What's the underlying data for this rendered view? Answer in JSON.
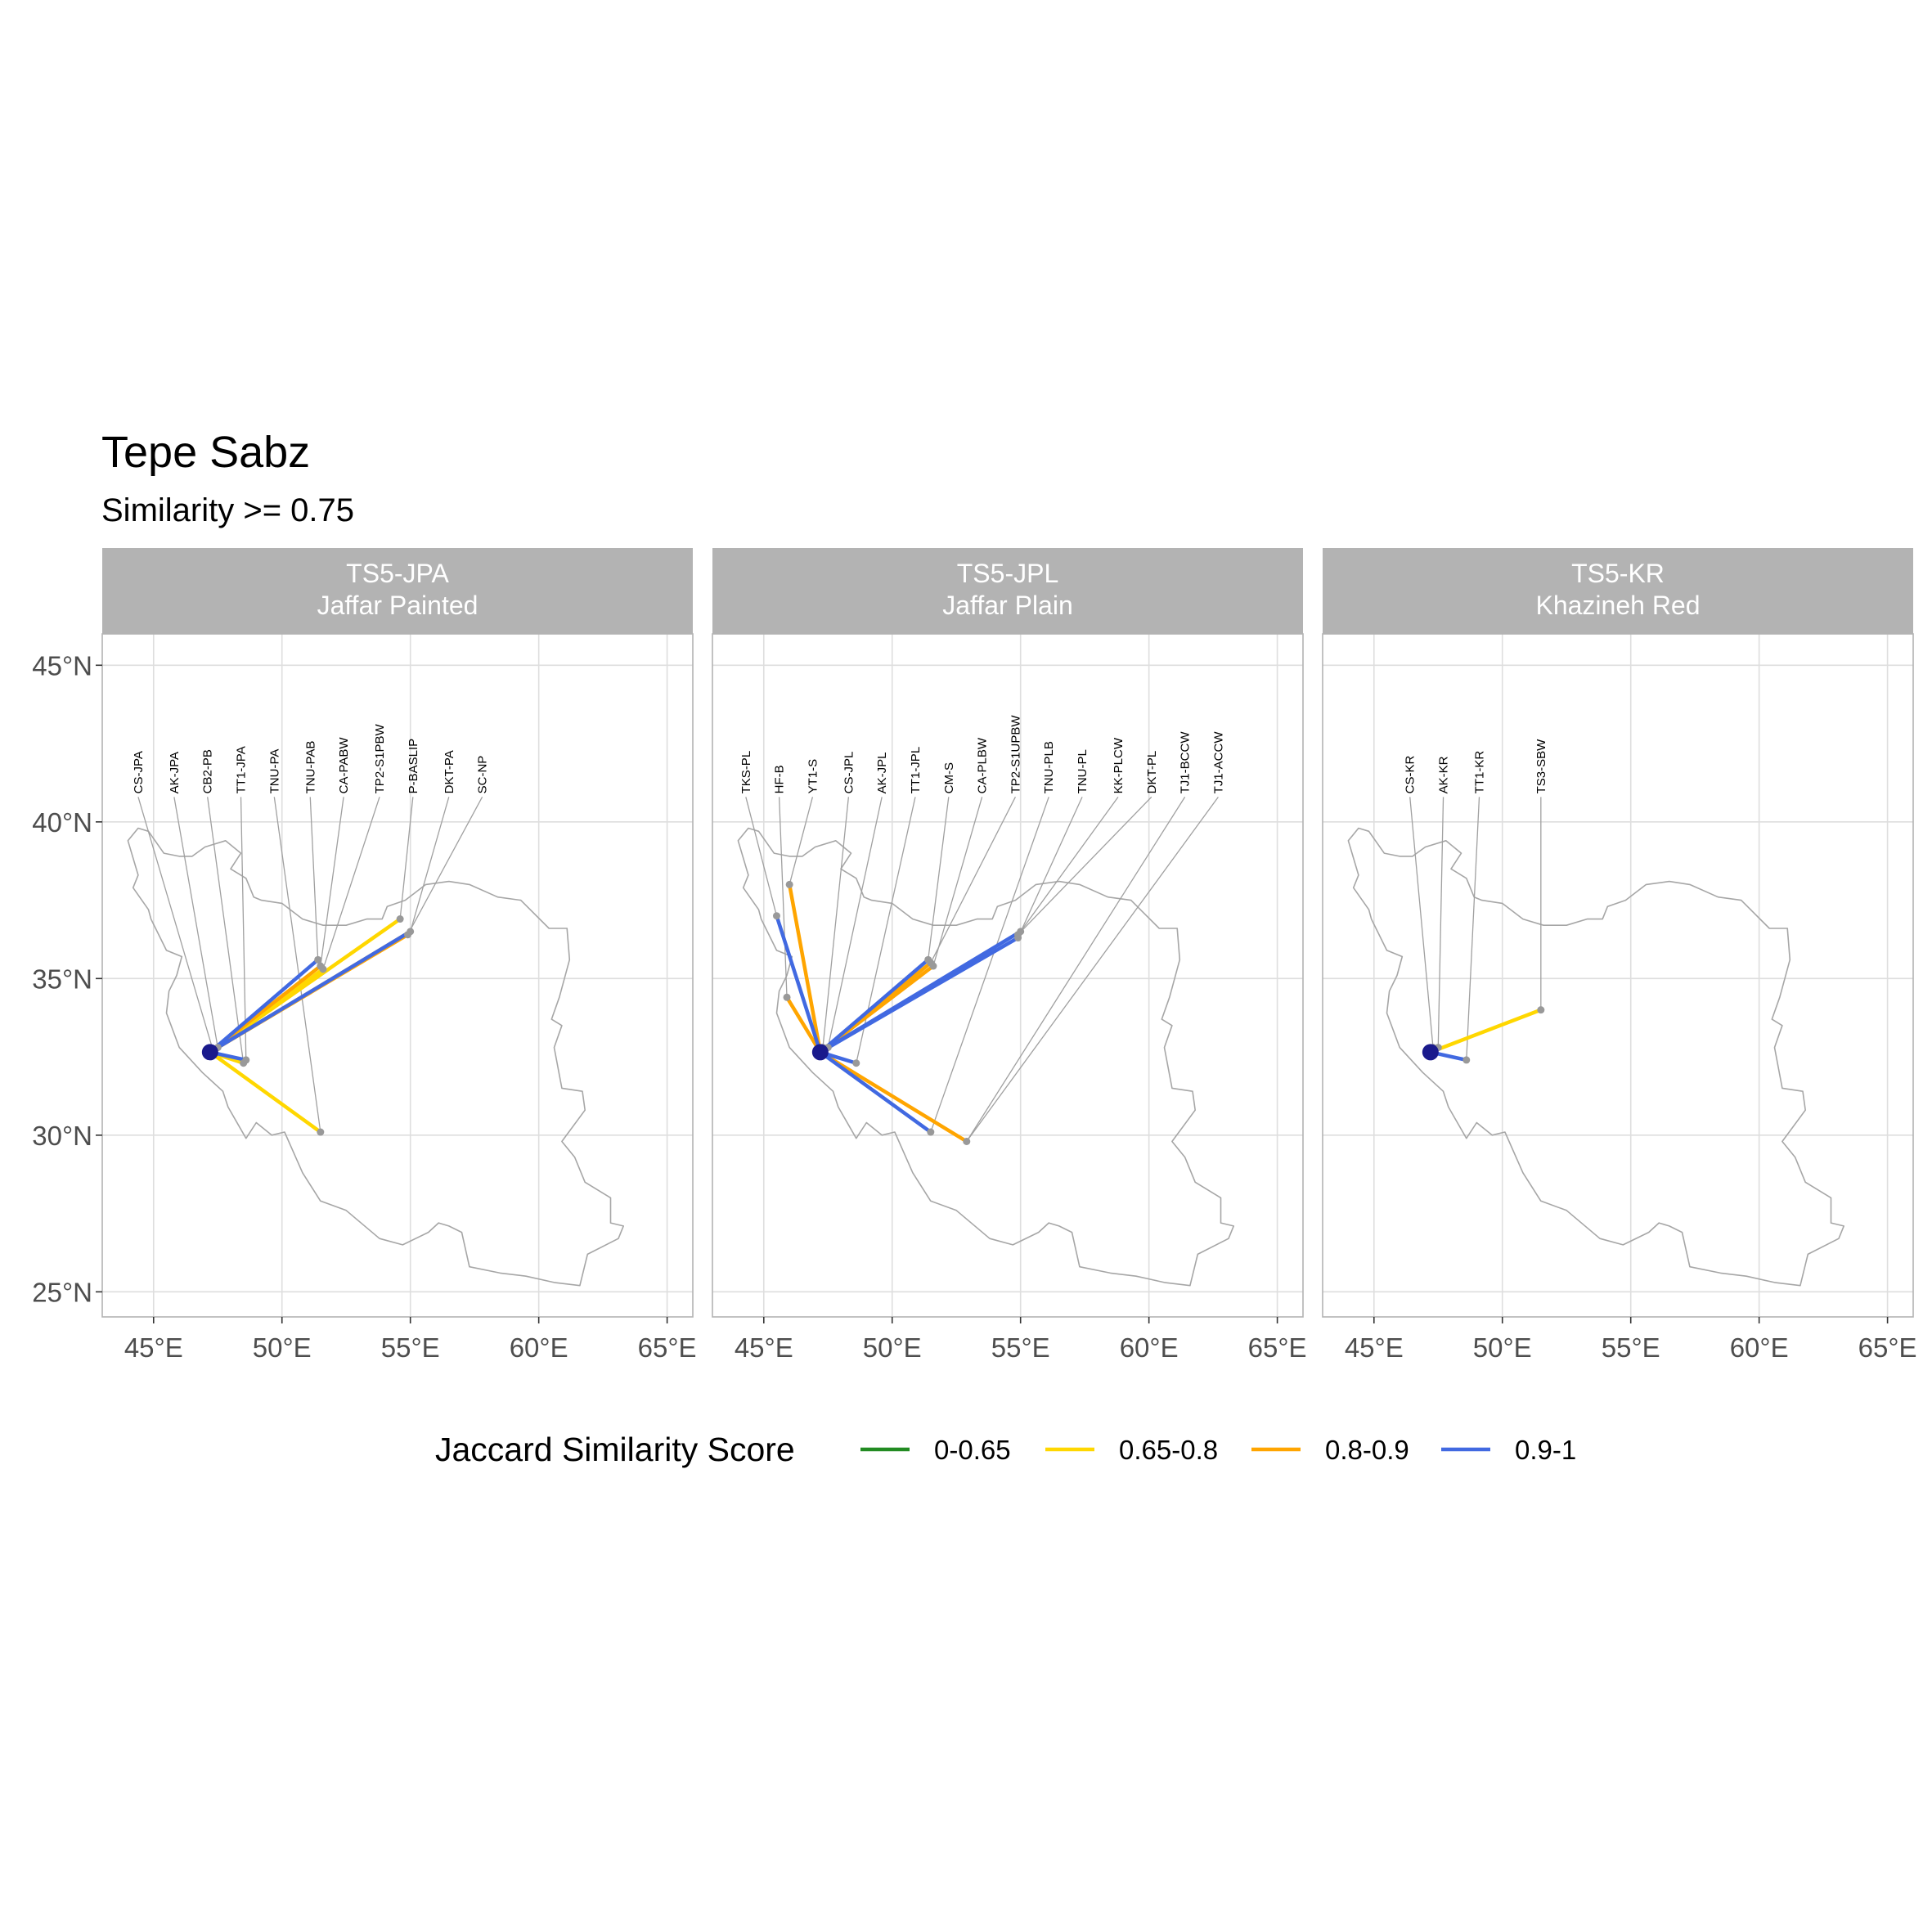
{
  "title": "Tepe Sabz",
  "subtitle": "Similarity >= 0.75",
  "colors": {
    "0-0.65": "#228b22",
    "0.65-0.8": "#ffd700",
    "0.8-0.9": "#ffa500",
    "0.9-1": "#4169e1",
    "origin_point": "#1a1a8c",
    "site_point": "#999999",
    "outline": "#a6a6a6",
    "strip": "#b3b3b3",
    "grid": "#dedede"
  },
  "axes": {
    "x_ticks": [
      45,
      50,
      55,
      60,
      65
    ],
    "x_tick_labels": [
      "45°E",
      "50°E",
      "55°E",
      "60°E",
      "65°E"
    ],
    "y_ticks": [
      25,
      30,
      35,
      40,
      45
    ],
    "y_tick_labels": [
      "25°N",
      "30°N",
      "35°N",
      "40°N",
      "45°N"
    ],
    "xlim": [
      43,
      66
    ],
    "ylim": [
      24.2,
      46
    ]
  },
  "legend": {
    "title": "Jaccard Similarity Score",
    "position": "bottom",
    "items": [
      {
        "label": "0-0.65",
        "color": "#228b22"
      },
      {
        "label": "0.65-0.8",
        "color": "#ffd700"
      },
      {
        "label": "0.8-0.9",
        "color": "#ffa500"
      },
      {
        "label": "0.9-1",
        "color": "#4169e1"
      }
    ]
  },
  "iran_outline": [
    [
      44.0,
      39.4
    ],
    [
      44.4,
      39.8
    ],
    [
      44.8,
      39.7
    ],
    [
      45.4,
      39.0
    ],
    [
      46.0,
      38.9
    ],
    [
      46.5,
      38.9
    ],
    [
      47.0,
      39.2
    ],
    [
      47.8,
      39.4
    ],
    [
      48.4,
      39.0
    ],
    [
      48.0,
      38.5
    ],
    [
      48.6,
      38.2
    ],
    [
      48.9,
      37.6
    ],
    [
      49.2,
      37.5
    ],
    [
      50.0,
      37.4
    ],
    [
      50.8,
      36.9
    ],
    [
      51.6,
      36.7
    ],
    [
      52.5,
      36.7
    ],
    [
      53.3,
      36.9
    ],
    [
      53.9,
      36.9
    ],
    [
      54.1,
      37.3
    ],
    [
      54.8,
      37.5
    ],
    [
      55.6,
      38.0
    ],
    [
      56.5,
      38.1
    ],
    [
      57.3,
      38.0
    ],
    [
      58.4,
      37.6
    ],
    [
      59.3,
      37.5
    ],
    [
      60.4,
      36.6
    ],
    [
      61.1,
      36.6
    ],
    [
      61.2,
      35.6
    ],
    [
      60.8,
      34.4
    ],
    [
      60.5,
      33.7
    ],
    [
      60.9,
      33.5
    ],
    [
      60.6,
      32.8
    ],
    [
      60.9,
      31.5
    ],
    [
      61.7,
      31.4
    ],
    [
      61.8,
      30.8
    ],
    [
      60.9,
      29.8
    ],
    [
      61.4,
      29.3
    ],
    [
      61.8,
      28.5
    ],
    [
      62.8,
      28.0
    ],
    [
      62.8,
      27.2
    ],
    [
      63.3,
      27.1
    ],
    [
      63.1,
      26.7
    ],
    [
      61.9,
      26.2
    ],
    [
      61.6,
      25.2
    ],
    [
      60.6,
      25.3
    ],
    [
      59.5,
      25.5
    ],
    [
      58.5,
      25.6
    ],
    [
      57.3,
      25.8
    ],
    [
      57.0,
      26.9
    ],
    [
      56.5,
      27.1
    ],
    [
      56.1,
      27.2
    ],
    [
      55.7,
      26.9
    ],
    [
      54.7,
      26.5
    ],
    [
      53.8,
      26.7
    ],
    [
      52.5,
      27.6
    ],
    [
      51.5,
      27.9
    ],
    [
      50.8,
      28.8
    ],
    [
      50.1,
      30.1
    ],
    [
      49.6,
      30.0
    ],
    [
      49.0,
      30.4
    ],
    [
      48.6,
      29.9
    ],
    [
      47.9,
      30.9
    ],
    [
      47.7,
      31.4
    ],
    [
      46.9,
      32.0
    ],
    [
      46.0,
      32.8
    ],
    [
      45.5,
      33.9
    ],
    [
      45.6,
      34.6
    ],
    [
      45.9,
      35.1
    ],
    [
      46.1,
      35.7
    ],
    [
      45.5,
      35.9
    ],
    [
      44.9,
      36.9
    ],
    [
      44.8,
      37.2
    ],
    [
      44.2,
      37.9
    ],
    [
      44.4,
      38.3
    ]
  ],
  "origin": {
    "lon": 47.2,
    "lat": 32.65
  },
  "panels": [
    {
      "strip_line1": "TS5-JPA",
      "strip_line2": "Jaffar Painted",
      "labels": [
        {
          "text": "CS-JPA",
          "lon": 44.4,
          "lat": 40.9,
          "sites": [
            [
              47.3,
              32.75
            ]
          ]
        },
        {
          "text": "AK-JPA",
          "lon": 45.8,
          "lat": 40.9,
          "sites": [
            [
              47.5,
              32.8
            ]
          ]
        },
        {
          "text": "CB2-PB",
          "lon": 47.1,
          "lat": 40.9,
          "sites": [
            [
              48.5,
              32.3
            ]
          ]
        },
        {
          "text": "TT1-JPA",
          "lon": 48.4,
          "lat": 40.9,
          "sites": [
            [
              48.6,
              32.4
            ]
          ]
        },
        {
          "text": "TNU-PA",
          "lon": 49.7,
          "lat": 40.9,
          "sites": [
            [
              51.5,
              30.1
            ]
          ]
        },
        {
          "text": "TNU-PAB",
          "lon": 51.1,
          "lat": 40.9,
          "sites": [
            [
              51.4,
              35.6
            ]
          ]
        },
        {
          "text": "CA-PABW",
          "lon": 52.4,
          "lat": 40.9,
          "sites": [
            [
              51.5,
              35.4
            ]
          ]
        },
        {
          "text": "TP2-S1PBW",
          "lon": 53.8,
          "lat": 40.9,
          "sites": [
            [
              51.6,
              35.3
            ]
          ]
        },
        {
          "text": "P-BASLIP",
          "lon": 55.1,
          "lat": 40.9,
          "sites": [
            [
              54.6,
              36.9
            ]
          ]
        },
        {
          "text": "DKT-PA",
          "lon": 56.5,
          "lat": 40.9,
          "sites": [
            [
              55.0,
              36.5
            ]
          ]
        },
        {
          "text": "SC-NP",
          "lon": 57.8,
          "lat": 40.9,
          "sites": [
            [
              54.9,
              36.4
            ]
          ]
        }
      ],
      "links": [
        {
          "to": [
            54.6,
            36.9
          ],
          "category": "0.65-0.8"
        },
        {
          "to": [
            51.5,
            30.1
          ],
          "category": "0.65-0.8"
        },
        {
          "to": [
            51.6,
            35.3
          ],
          "category": "0.65-0.8"
        },
        {
          "to": [
            48.5,
            32.3
          ],
          "category": "0.65-0.8"
        },
        {
          "to": [
            55.0,
            36.5
          ],
          "category": "0.8-0.9"
        },
        {
          "to": [
            51.5,
            35.4
          ],
          "category": "0.8-0.9"
        },
        {
          "to": [
            54.9,
            36.4
          ],
          "category": "0.8-0.9"
        },
        {
          "to": [
            51.4,
            35.6
          ],
          "category": "0.9-1"
        },
        {
          "to": [
            55.0,
            36.5
          ],
          "category": "0.9-1"
        },
        {
          "to": [
            48.6,
            32.4
          ],
          "category": "0.9-1"
        }
      ]
    },
    {
      "strip_line1": "TS5-JPL",
      "strip_line2": "Jaffar Plain",
      "labels": [
        {
          "text": "TKS-PL",
          "lon": 44.3,
          "lat": 40.9,
          "sites": [
            [
              45.5,
              37.0
            ]
          ]
        },
        {
          "text": "HF-B",
          "lon": 45.6,
          "lat": 40.9,
          "sites": [
            [
              45.9,
              34.4
            ]
          ]
        },
        {
          "text": "YT1-S",
          "lon": 46.9,
          "lat": 40.9,
          "sites": [
            [
              46.0,
              38.0
            ]
          ]
        },
        {
          "text": "CS-JPL",
          "lon": 48.3,
          "lat": 40.9,
          "sites": [
            [
              47.3,
              32.8
            ]
          ]
        },
        {
          "text": "AK-JPL",
          "lon": 49.6,
          "lat": 40.9,
          "sites": [
            [
              47.5,
              32.8
            ]
          ]
        },
        {
          "text": "TT1-JPL",
          "lon": 50.9,
          "lat": 40.9,
          "sites": [
            [
              48.6,
              32.3
            ]
          ]
        },
        {
          "text": "CM-S",
          "lon": 52.2,
          "lat": 40.9,
          "sites": [
            [
              51.4,
              35.6
            ]
          ]
        },
        {
          "text": "CA-PLBW",
          "lon": 53.5,
          "lat": 40.9,
          "sites": [
            [
              51.6,
              35.4
            ]
          ]
        },
        {
          "text": "TP2-S1UPBW",
          "lon": 54.8,
          "lat": 40.9,
          "sites": [
            [
              51.5,
              35.5
            ]
          ]
        },
        {
          "text": "TNU-PLB",
          "lon": 56.1,
          "lat": 40.9,
          "sites": [
            [
              51.5,
              30.1
            ]
          ]
        },
        {
          "text": "TNU-PL",
          "lon": 57.4,
          "lat": 40.9,
          "sites": [
            [
              54.9,
              36.3
            ]
          ]
        },
        {
          "text": "KK-PLCW",
          "lon": 58.8,
          "lat": 40.9,
          "sites": [
            [
              55.0,
              36.5
            ]
          ]
        },
        {
          "text": "DKT-PL",
          "lon": 60.1,
          "lat": 40.9,
          "sites": [
            [
              54.9,
              36.4
            ]
          ]
        },
        {
          "text": "TJ1-BCCW",
          "lon": 61.4,
          "lat": 40.9,
          "sites": [
            [
              52.9,
              29.8
            ]
          ]
        },
        {
          "text": "TJ1-ACCW",
          "lon": 62.7,
          "lat": 40.9,
          "sites": [
            [
              52.9,
              29.8
            ]
          ]
        }
      ],
      "links": [
        {
          "to": [
            46.0,
            38.0
          ],
          "category": "0.8-0.9"
        },
        {
          "to": [
            45.9,
            34.4
          ],
          "category": "0.8-0.9"
        },
        {
          "to": [
            51.6,
            35.4
          ],
          "category": "0.8-0.9"
        },
        {
          "to": [
            51.5,
            35.5
          ],
          "category": "0.8-0.9"
        },
        {
          "to": [
            52.9,
            29.8
          ],
          "category": "0.8-0.9"
        },
        {
          "to": [
            45.5,
            37.0
          ],
          "category": "0.9-1"
        },
        {
          "to": [
            51.5,
            30.1
          ],
          "category": "0.9-1"
        },
        {
          "to": [
            55.0,
            36.5
          ],
          "category": "0.9-1"
        },
        {
          "to": [
            54.9,
            36.3
          ],
          "category": "0.9-1"
        },
        {
          "to": [
            51.4,
            35.6
          ],
          "category": "0.9-1"
        },
        {
          "to": [
            48.6,
            32.3
          ],
          "category": "0.9-1"
        }
      ]
    },
    {
      "strip_line1": "TS5-KR",
      "strip_line2": "Khazineh Red",
      "labels": [
        {
          "text": "CS-KR",
          "lon": 46.4,
          "lat": 40.9,
          "sites": [
            [
              47.3,
              32.8
            ]
          ]
        },
        {
          "text": "AK-KR",
          "lon": 47.7,
          "lat": 40.9,
          "sites": [
            [
              47.5,
              32.8
            ]
          ]
        },
        {
          "text": "TT1-KR",
          "lon": 49.1,
          "lat": 40.9,
          "sites": [
            [
              48.6,
              32.4
            ]
          ]
        },
        {
          "text": "TS3-SBW",
          "lon": 51.5,
          "lat": 40.9,
          "sites": [
            [
              51.5,
              34.0
            ]
          ]
        }
      ],
      "links": [
        {
          "to": [
            51.5,
            34.0
          ],
          "category": "0.65-0.8"
        },
        {
          "to": [
            48.6,
            32.4
          ],
          "category": "0.9-1"
        }
      ]
    }
  ]
}
